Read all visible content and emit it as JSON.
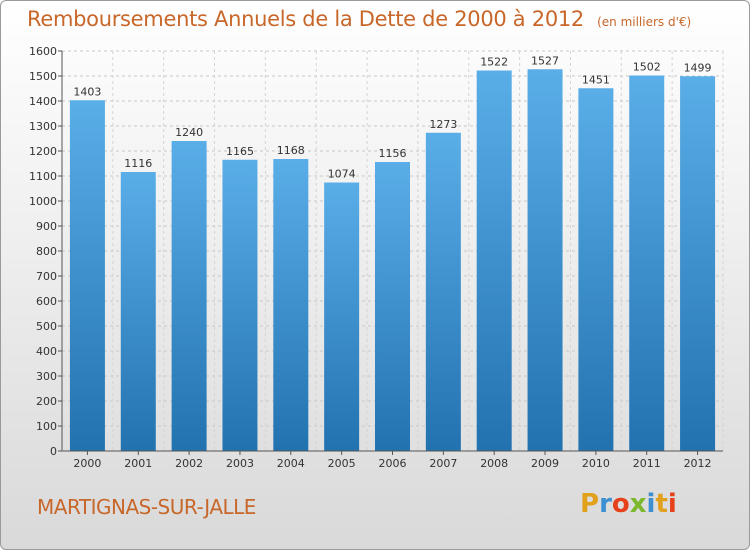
{
  "title": "Remboursements Annuels de la Dette de 2000 à 2012",
  "subtitle": "(en milliers d'€)",
  "town": "MARTIGNAS-SUR-JALLE",
  "logo": {
    "letters": [
      "P",
      "r",
      "o",
      "x",
      "i",
      "t",
      "i"
    ],
    "colors": [
      "#e2a11d",
      "#3c8fd0",
      "#e6411b",
      "#7bb82c",
      "#3c8fd0",
      "#e2a11d",
      "#e6411b"
    ]
  },
  "colors": {
    "bar": "#3d95d6",
    "bar_dark": "#2270ad",
    "title": "#c8672a"
  },
  "chart_data": {
    "type": "bar",
    "categories": [
      "2000",
      "2001",
      "2002",
      "2003",
      "2004",
      "2005",
      "2006",
      "2007",
      "2008",
      "2009",
      "2010",
      "2011",
      "2012"
    ],
    "values": [
      1403,
      1116,
      1240,
      1165,
      1168,
      1074,
      1156,
      1273,
      1522,
      1527,
      1451,
      1502,
      1499
    ],
    "ylim": [
      0,
      1600
    ],
    "yticks": [
      0,
      100,
      200,
      300,
      400,
      500,
      600,
      700,
      800,
      900,
      1000,
      1100,
      1200,
      1300,
      1400,
      1500,
      1600
    ],
    "grid": true
  }
}
